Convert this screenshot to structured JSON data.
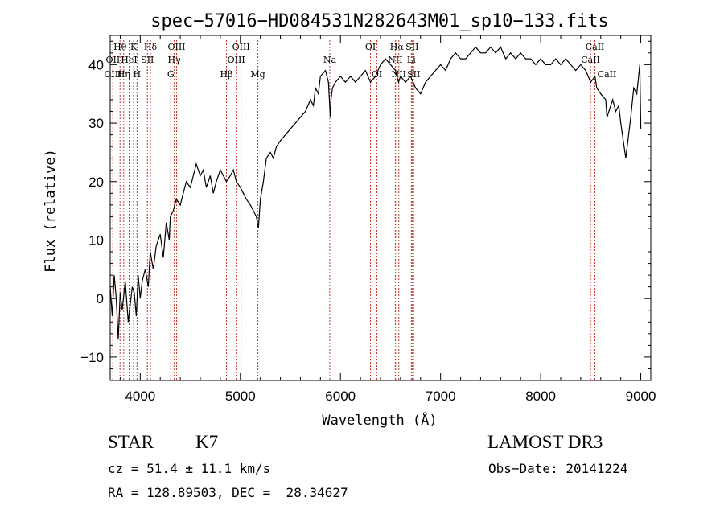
{
  "chart_data": {
    "type": "line",
    "title": "spec−57016−HD084531N282643M01_sp10−133.fits",
    "xlabel": "Wavelength (Å)",
    "ylabel": "Flux (relative)",
    "xlim": [
      3700,
      9100
    ],
    "ylim": [
      -14,
      45
    ],
    "xticks": [
      4000,
      5000,
      6000,
      7000,
      8000,
      9000
    ],
    "xtick_labels": [
      "4000",
      "5000",
      "6000",
      "7000",
      "8000",
      "9000"
    ],
    "yticks": [
      -10,
      0,
      10,
      20,
      30,
      40
    ],
    "ytick_labels": [
      "−10",
      "0",
      "10",
      "20",
      "30",
      "40"
    ],
    "grid": false,
    "series": [
      {
        "color": "#000000",
        "x": [
          3700,
          3720,
          3740,
          3760,
          3780,
          3800,
          3820,
          3850,
          3880,
          3900,
          3920,
          3940,
          3960,
          3980,
          4000,
          4020,
          4050,
          4080,
          4100,
          4130,
          4160,
          4200,
          4230,
          4260,
          4290,
          4300,
          4330,
          4360,
          4400,
          4430,
          4460,
          4500,
          4530,
          4560,
          4600,
          4630,
          4660,
          4700,
          4730,
          4760,
          4800,
          4830,
          4860,
          4900,
          4930,
          4960,
          5000,
          5030,
          5060,
          5100,
          5130,
          5160,
          5180,
          5200,
          5230,
          5260,
          5300,
          5330,
          5360,
          5400,
          5450,
          5500,
          5550,
          5600,
          5650,
          5700,
          5730,
          5750,
          5780,
          5800,
          5850,
          5880,
          5895,
          5900,
          5905,
          5920,
          5950,
          6000,
          6050,
          6100,
          6150,
          6200,
          6250,
          6300,
          6350,
          6400,
          6450,
          6500,
          6550,
          6563,
          6580,
          6600,
          6650,
          6700,
          6750,
          6800,
          6850,
          6900,
          6950,
          7000,
          7050,
          7100,
          7150,
          7200,
          7250,
          7300,
          7350,
          7400,
          7450,
          7500,
          7550,
          7600,
          7650,
          7700,
          7750,
          7800,
          7850,
          7900,
          7950,
          8000,
          8050,
          8100,
          8150,
          8200,
          8250,
          8300,
          8350,
          8400,
          8450,
          8500,
          8542,
          8560,
          8600,
          8650,
          8662,
          8700,
          8720,
          8750,
          8780,
          8800,
          8850,
          8900,
          8930,
          8960,
          8990,
          9000
        ],
        "y": [
          2,
          -3,
          4,
          0,
          -7,
          1,
          -2,
          3,
          -4,
          -1,
          2,
          1,
          -3,
          4,
          0,
          3,
          5,
          2,
          8,
          5,
          9,
          11,
          7,
          13,
          10,
          14,
          15,
          17,
          16,
          18,
          20,
          19,
          21,
          23,
          21,
          22,
          19,
          21,
          18,
          20,
          22,
          21,
          20,
          21,
          22,
          20,
          19,
          18,
          17,
          16,
          15,
          14,
          12,
          17,
          20,
          24,
          25,
          24,
          26,
          27,
          28,
          29,
          30,
          31,
          32,
          34,
          33,
          36,
          35,
          38,
          39,
          37,
          32,
          31,
          34,
          36,
          37,
          38,
          37,
          38,
          37,
          38,
          39,
          37,
          38,
          40,
          41,
          40,
          39,
          38,
          37,
          38,
          37,
          38,
          36,
          35,
          37,
          38,
          39,
          40,
          39,
          41,
          42,
          41,
          41,
          42,
          43,
          42,
          42,
          43,
          42,
          43,
          41,
          42,
          41,
          42,
          41,
          41,
          40,
          41,
          40,
          40,
          41,
          40,
          41,
          40,
          39,
          40,
          39,
          37,
          38,
          36,
          35,
          34,
          31,
          33,
          34,
          32,
          33,
          30,
          24,
          31,
          36,
          35,
          40,
          29
        ]
      }
    ],
    "spectral_lines": [
      {
        "label": "Hθ",
        "x": 3798,
        "row": 0
      },
      {
        "label": "OII",
        "x": 3727,
        "row": 1
      },
      {
        "label": "OIII",
        "x": 3727,
        "row": 2
      },
      {
        "label": "Hη",
        "x": 3835,
        "row": 2
      },
      {
        "label": "HeI",
        "x": 3889,
        "row": 1
      },
      {
        "label": "K",
        "x": 3934,
        "row": 0
      },
      {
        "label": "SII",
        "x": 4072,
        "row": 1
      },
      {
        "label": "H",
        "x": 3968,
        "row": 2
      },
      {
        "label": "Hδ",
        "x": 4102,
        "row": 0
      },
      {
        "label": "OIII",
        "x": 4363,
        "row": 0
      },
      {
        "label": "Hγ",
        "x": 4340,
        "row": 1
      },
      {
        "label": "G",
        "x": 4305,
        "row": 2
      },
      {
        "label": "OIII",
        "x": 5007,
        "row": 0
      },
      {
        "label": "OIII",
        "x": 4959,
        "row": 1
      },
      {
        "label": "Hβ",
        "x": 4861,
        "row": 2
      },
      {
        "label": "Mg",
        "x": 5175,
        "row": 2
      },
      {
        "label": "Na",
        "x": 5893,
        "row": 1
      },
      {
        "label": "OI",
        "x": 6300,
        "row": 0
      },
      {
        "label": "OI",
        "x": 6364,
        "row": 2
      },
      {
        "label": "Hα",
        "x": 6563,
        "row": 0
      },
      {
        "label": "SII",
        "x": 6716,
        "row": 0
      },
      {
        "label": "NII",
        "x": 6548,
        "row": 1
      },
      {
        "label": "Li",
        "x": 6708,
        "row": 1
      },
      {
        "label": "NII",
        "x": 6583,
        "row": 2
      },
      {
        "label": "SII",
        "x": 6731,
        "row": 2
      },
      {
        "label": "CaII",
        "x": 8542,
        "row": 0
      },
      {
        "label": "CaII",
        "x": 8498,
        "row": 1
      },
      {
        "label": "CaII",
        "x": 8662,
        "row": 2
      }
    ],
    "line_marker_color": "#c0392b"
  },
  "info": {
    "object_class": "STAR",
    "subclass": "K7",
    "survey": "LAMOST DR3",
    "cz": "cz = 51.4 ± 11.1 km/s",
    "obs_date": "Obs−Date: 20141224",
    "coords": "RA = 128.89503, DEC =  28.34627"
  }
}
